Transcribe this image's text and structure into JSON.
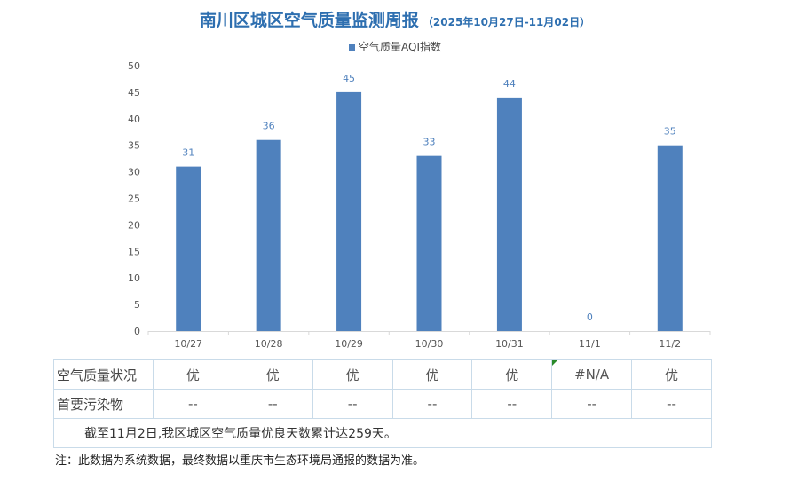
{
  "title": "南川区城区空气质量监测周报",
  "subtitle": "（2025年10月27日-11月02日）",
  "chart_data": {
    "type": "bar",
    "categories": [
      "10/27",
      "10/28",
      "10/29",
      "10/30",
      "10/31",
      "11/1",
      "11/2"
    ],
    "series": [
      {
        "name": "空气质量AQI指数",
        "values": [
          31,
          36,
          45,
          33,
          44,
          0,
          35
        ]
      }
    ],
    "data_labels": [
      "31",
      "36",
      "45",
      "33",
      "44",
      "0",
      "35"
    ],
    "ylim": [
      0,
      50
    ],
    "yticks": [
      0,
      5,
      10,
      15,
      20,
      25,
      30,
      35,
      40,
      45,
      50
    ],
    "grid": false,
    "legend_position": "top",
    "bar_color": "#4f81bd"
  },
  "table": {
    "row1_label": "空气质量状况",
    "row1_values": [
      "优",
      "优",
      "优",
      "优",
      "优",
      "#N/A",
      "优"
    ],
    "row2_label": "首要污染物",
    "row2_values": [
      "--",
      "--",
      "--",
      "--",
      "--",
      "--",
      "--"
    ],
    "summary": "截至11月2日,我区城区空气质量优良天数累计达259天。"
  },
  "note": "注：此数据为系统数据，最终数据以重庆市生态环境局通报的数据为准。"
}
